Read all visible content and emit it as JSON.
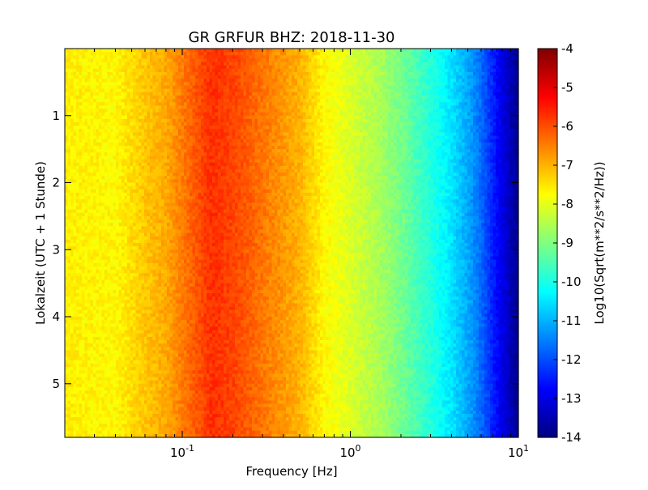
{
  "chart_data": {
    "type": "heatmap",
    "title": "GR GRFUR BHZ: 2018-11-30",
    "xlabel": "Frequency [Hz]",
    "ylabel": "Lokalzeit (UTC + 1 Stunde)",
    "x_scale": "log",
    "x_range_hz": [
      0.02,
      10
    ],
    "y_range_hours": [
      0,
      5.8
    ],
    "y_inverted": true,
    "x_ticks": [
      {
        "value": 0.1,
        "base": "10",
        "exp": "-1"
      },
      {
        "value": 1,
        "base": "10",
        "exp": "0"
      },
      {
        "value": 10,
        "base": "10",
        "exp": "1"
      }
    ],
    "y_ticks": [
      "1",
      "2",
      "3",
      "4",
      "5"
    ],
    "colorbar": {
      "label": "Log10(Sqrt(m**2/s**2/Hz))",
      "range": [
        -14,
        -4
      ],
      "ticks": [
        "-4",
        "-5",
        "-6",
        "-7",
        "-8",
        "-9",
        "-10",
        "-11",
        "-12",
        "-13",
        "-14"
      ],
      "colormap": "jet"
    },
    "column_profile": {
      "frequency_hz": [
        0.02,
        0.04,
        0.06,
        0.08,
        0.12,
        0.15,
        0.2,
        0.3,
        0.5,
        0.7,
        1.0,
        1.5,
        2.0,
        3.0,
        4.0,
        5.0,
        6.0,
        7.0,
        8.0,
        10.0
      ],
      "log10_amplitude": [
        -7.6,
        -7.7,
        -7.2,
        -6.9,
        -6.1,
        -5.7,
        -5.9,
        -6.4,
        -7.0,
        -7.7,
        -8.1,
        -8.6,
        -9.1,
        -9.9,
        -10.5,
        -11.1,
        -11.7,
        -12.4,
        -13.0,
        -13.9
      ]
    }
  }
}
